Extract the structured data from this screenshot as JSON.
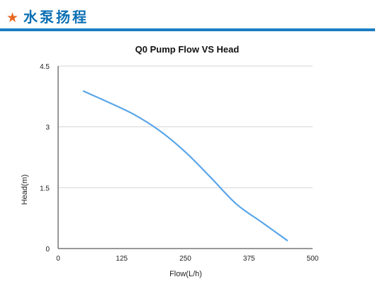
{
  "header": {
    "star": "★",
    "title": "水泵扬程",
    "accent_color": "#e8681f",
    "title_color": "#0b6fb3",
    "rule_color": "#1b7dc4"
  },
  "chart_data": {
    "type": "line",
    "title": "Q0 Pump Flow VS Head",
    "xlabel": "Flow(L/h)",
    "ylabel": "Head(m)",
    "xlim": [
      0,
      500
    ],
    "ylim": [
      0,
      4.5
    ],
    "x_ticks": [
      0,
      125,
      250,
      375,
      500
    ],
    "y_ticks": [
      0,
      1.5,
      3,
      4.5
    ],
    "x_tick_labels": [
      "0",
      "125",
      "250",
      "375",
      "500"
    ],
    "y_tick_labels": [
      "0",
      "1.5",
      "3",
      "4.5"
    ],
    "grid": "horizontal",
    "series": [
      {
        "color": "#5aa6e8",
        "x": [
          50,
          100,
          150,
          200,
          250,
          300,
          350,
          400,
          450
        ],
        "y": [
          3.88,
          3.6,
          3.3,
          2.9,
          2.38,
          1.75,
          1.1,
          0.65,
          0.2
        ]
      }
    ]
  }
}
